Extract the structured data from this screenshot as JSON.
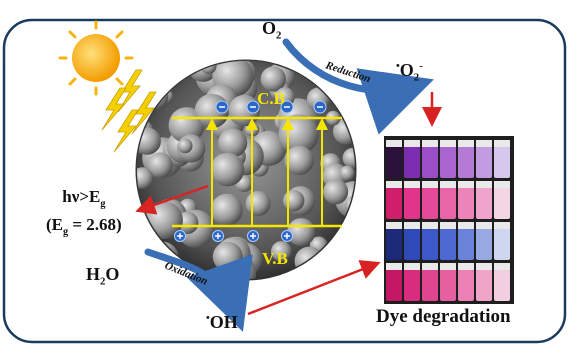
{
  "band_labels": {
    "cb": "C.B",
    "vb": "V.B"
  },
  "reactions": {
    "reduction": {
      "label": "Reduction",
      "reactant": "O",
      "reactant_sub": "2",
      "product_dot": "•",
      "product": "O",
      "product_sub": "2",
      "product_sup": "-"
    },
    "oxidation": {
      "label": "Oxidation",
      "reactant": "H",
      "reactant_sub": "2",
      "reactant_tail": "O",
      "product_dot": "•",
      "product": "OH"
    }
  },
  "bandgap": {
    "line1_a": "hν>E",
    "line1_sub": "g",
    "line2_a": "(E",
    "line2_sub": "g",
    "line2_b": " = 2.68)"
  },
  "vials_caption": "Dye degradation",
  "electron_symbol": "⊖",
  "hole_symbol": "⊕",
  "colors": {
    "frame": "#1b3b5e",
    "band_line": "#f5e600",
    "arrow_red": "#d92222",
    "arrow_blue": "#3a6fb5",
    "sun": "#f6b40c",
    "lightning": "#f4d000"
  }
}
